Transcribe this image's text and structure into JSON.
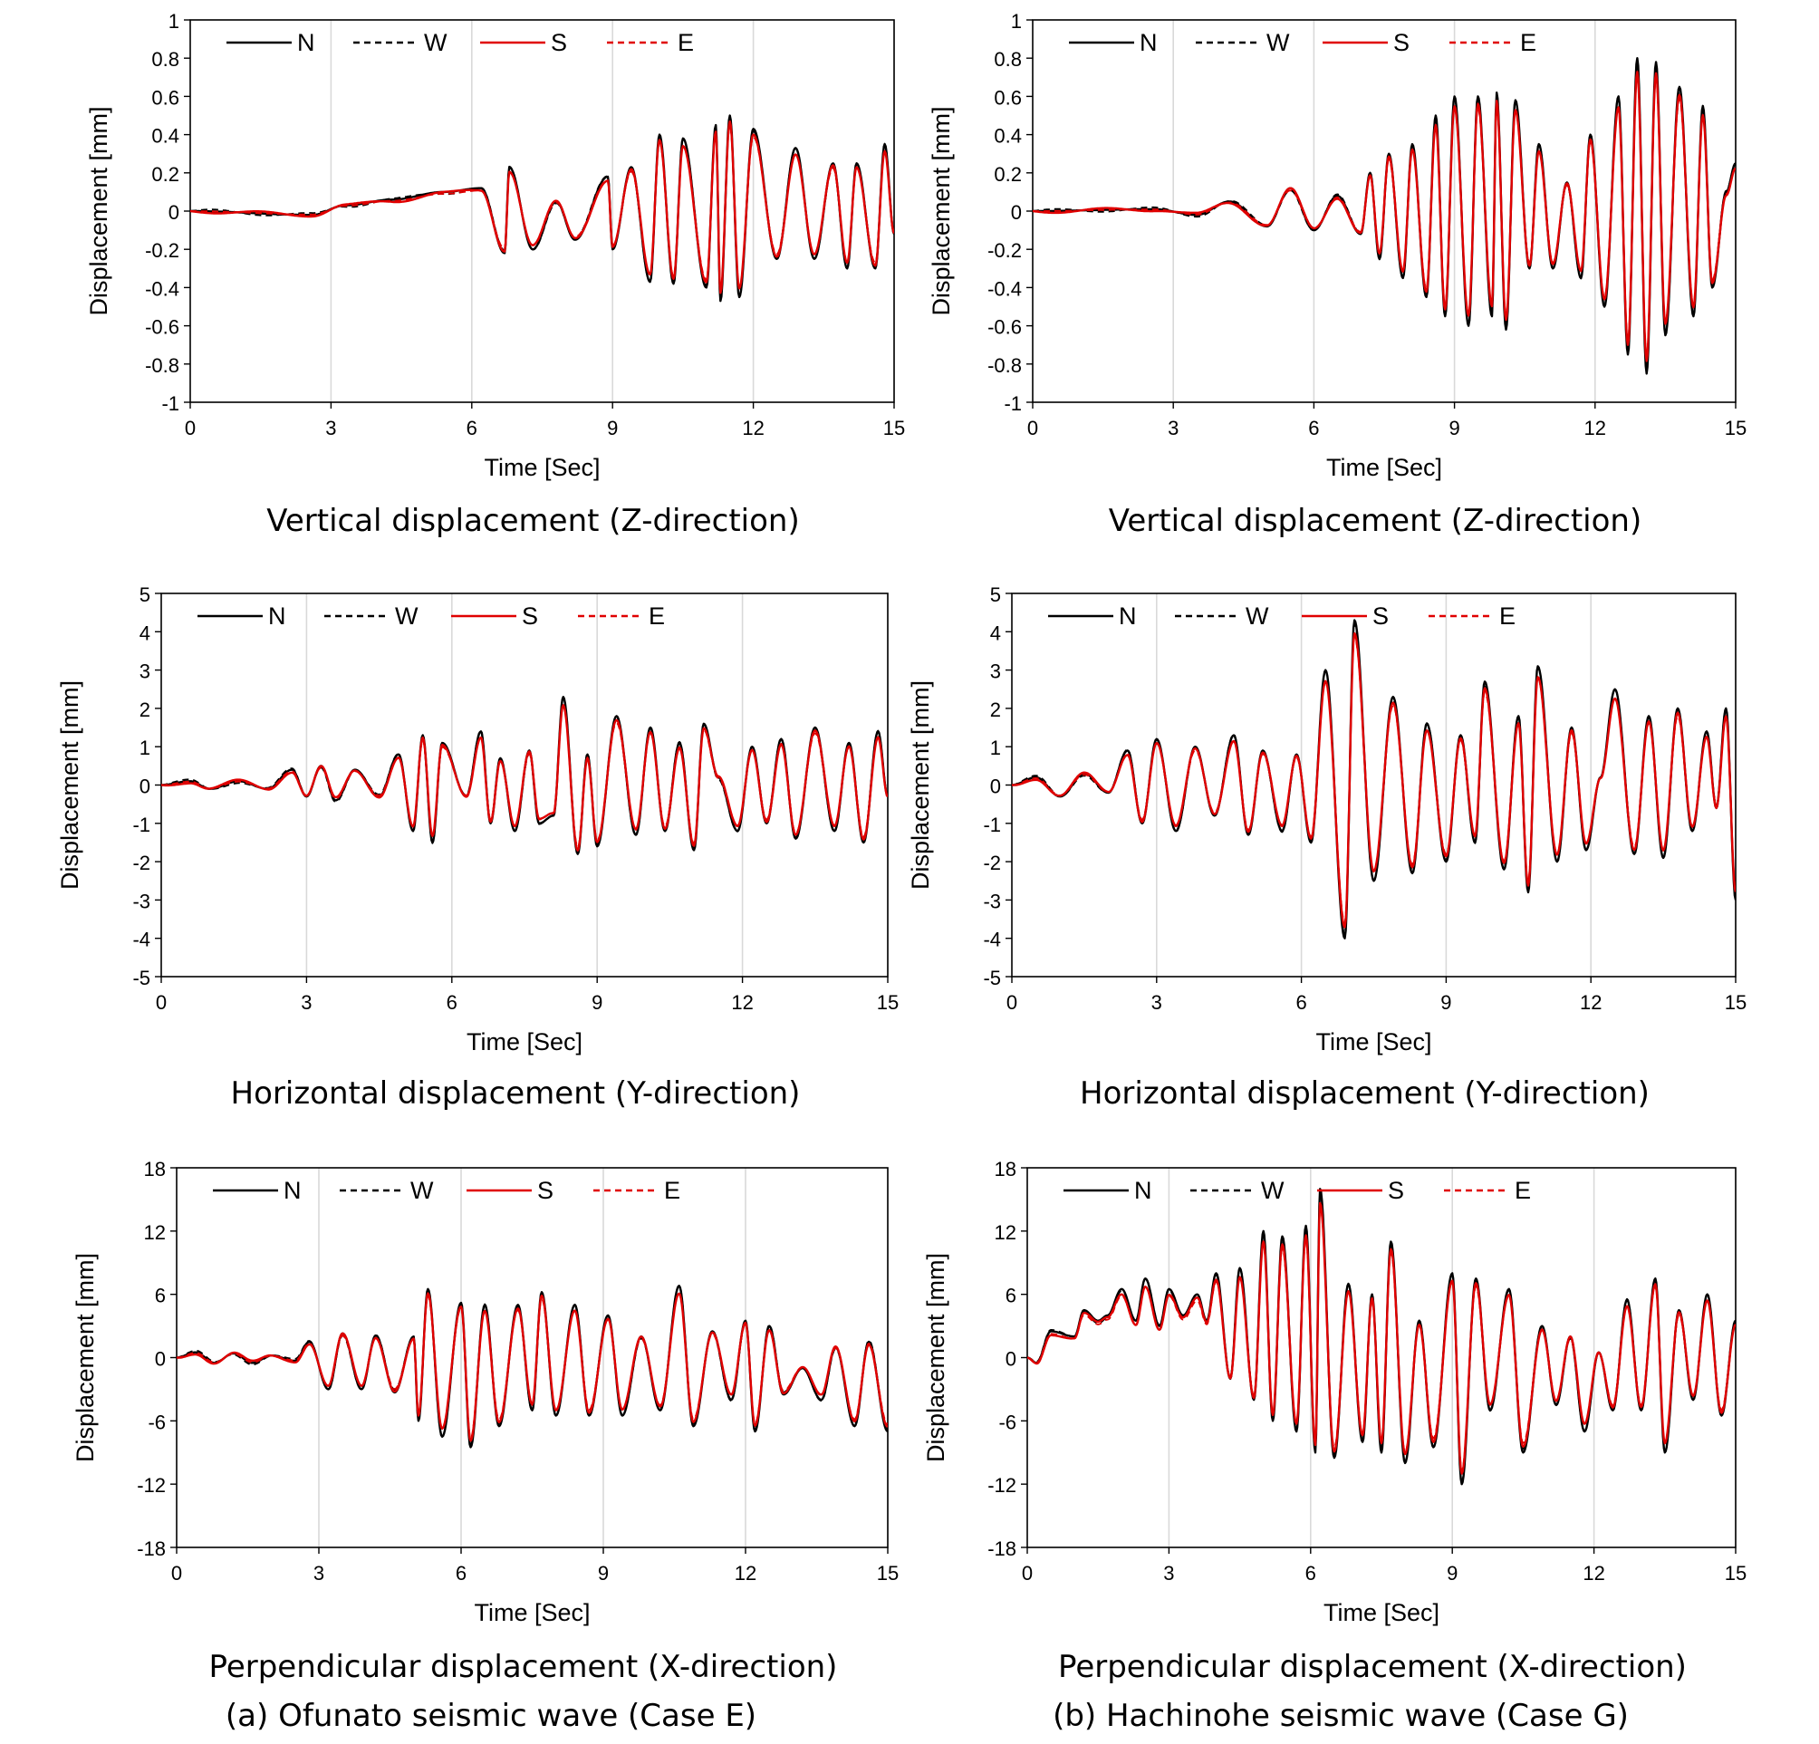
{
  "figure_captions": {
    "left": "(a) Ofunato seismic wave (Case E)",
    "right": "(b) Hachinohe seismic wave (Case G)"
  },
  "colors": {
    "N": "#000000",
    "W": "#000000",
    "S": "#e00000",
    "E": "#e00000",
    "grid": "#d9d9d9"
  },
  "chart_data": [
    {
      "type": "line",
      "caption": "Vertical displacement (Z-direction)",
      "xlabel": "Time [Sec]",
      "ylabel": "Displacement [mm]",
      "xlim": [
        0,
        15
      ],
      "ylim": [
        -1,
        1
      ],
      "xticks": [
        "0",
        "3",
        "6",
        "9",
        "12",
        "15"
      ],
      "yticks": [
        "1",
        "0.8",
        "0.6",
        "0.4",
        "0.2",
        "0",
        "-0.2",
        "-0.4",
        "-0.6",
        "-0.8",
        "-1"
      ],
      "grid": "vertical",
      "legend": "top",
      "series": [
        {
          "name": "N",
          "style": "solid-black"
        },
        {
          "name": "W",
          "style": "dashed-black"
        },
        {
          "name": "S",
          "style": "solid-red"
        },
        {
          "name": "E",
          "style": "dashed-red"
        }
      ],
      "extrema": [
        [
          0,
          0
        ],
        [
          2.6,
          -0.02
        ],
        [
          3.3,
          0.03
        ],
        [
          4.3,
          0.06
        ],
        [
          5.4,
          0.1
        ],
        [
          6.2,
          0.12
        ],
        [
          6.7,
          -0.22
        ],
        [
          6.8,
          0.23
        ],
        [
          7.3,
          -0.2
        ],
        [
          7.8,
          0.05
        ],
        [
          8.2,
          -0.15
        ],
        [
          8.9,
          0.18
        ],
        [
          9.0,
          -0.2
        ],
        [
          9.4,
          0.23
        ],
        [
          9.8,
          -0.37
        ],
        [
          10.0,
          0.4
        ],
        [
          10.3,
          -0.38
        ],
        [
          10.5,
          0.38
        ],
        [
          11.0,
          -0.4
        ],
        [
          11.2,
          0.45
        ],
        [
          11.3,
          -0.47
        ],
        [
          11.5,
          0.5
        ],
        [
          11.7,
          -0.45
        ],
        [
          12.0,
          0.43
        ],
        [
          12.5,
          -0.25
        ],
        [
          12.9,
          0.33
        ],
        [
          13.3,
          -0.25
        ],
        [
          13.7,
          0.25
        ],
        [
          14.0,
          -0.3
        ],
        [
          14.2,
          0.25
        ],
        [
          14.6,
          -0.3
        ],
        [
          14.8,
          0.35
        ],
        [
          15.0,
          -0.12
        ]
      ]
    },
    {
      "type": "line",
      "caption": "Horizontal displacement (Y-direction)",
      "xlabel": "Time [Sec]",
      "ylabel": "Displacement [mm]",
      "xlim": [
        0,
        15
      ],
      "ylim": [
        -5,
        5
      ],
      "xticks": [
        "0",
        "3",
        "6",
        "9",
        "12",
        "15"
      ],
      "yticks": [
        "5",
        "4",
        "3",
        "2",
        "1",
        "0",
        "-1",
        "-2",
        "-3",
        "-4",
        "-5"
      ],
      "grid": "vertical",
      "legend": "top",
      "series": [
        {
          "name": "N",
          "style": "solid-black"
        },
        {
          "name": "W",
          "style": "dashed-black"
        },
        {
          "name": "S",
          "style": "solid-red"
        },
        {
          "name": "E",
          "style": "dashed-red"
        }
      ],
      "extrema": [
        [
          0,
          0
        ],
        [
          0.6,
          0.1
        ],
        [
          1.0,
          -0.1
        ],
        [
          1.6,
          0.1
        ],
        [
          2.2,
          -0.1
        ],
        [
          2.7,
          0.4
        ],
        [
          3.0,
          -0.3
        ],
        [
          3.3,
          0.5
        ],
        [
          3.6,
          -0.4
        ],
        [
          4.0,
          0.4
        ],
        [
          4.5,
          -0.3
        ],
        [
          4.9,
          0.8
        ],
        [
          5.2,
          -1.2
        ],
        [
          5.4,
          1.3
        ],
        [
          5.6,
          -1.5
        ],
        [
          5.8,
          1.1
        ],
        [
          6.3,
          -0.3
        ],
        [
          6.6,
          1.4
        ],
        [
          6.8,
          -1.0
        ],
        [
          7.0,
          0.7
        ],
        [
          7.3,
          -1.2
        ],
        [
          7.6,
          0.9
        ],
        [
          7.8,
          -1.0
        ],
        [
          8.1,
          -0.8
        ],
        [
          8.3,
          2.3
        ],
        [
          8.6,
          -1.8
        ],
        [
          8.8,
          0.8
        ],
        [
          9.0,
          -1.6
        ],
        [
          9.4,
          1.8
        ],
        [
          9.8,
          -1.3
        ],
        [
          10.1,
          1.5
        ],
        [
          10.4,
          -1.2
        ],
        [
          10.7,
          1.1
        ],
        [
          11.0,
          -1.7
        ],
        [
          11.2,
          1.6
        ],
        [
          11.5,
          0.2
        ],
        [
          11.9,
          -1.2
        ],
        [
          12.2,
          1.0
        ],
        [
          12.5,
          -1.0
        ],
        [
          12.8,
          1.2
        ],
        [
          13.1,
          -1.4
        ],
        [
          13.5,
          1.5
        ],
        [
          13.9,
          -1.2
        ],
        [
          14.2,
          1.1
        ],
        [
          14.5,
          -1.5
        ],
        [
          14.8,
          1.4
        ],
        [
          15.0,
          -0.3
        ]
      ]
    },
    {
      "type": "line",
      "caption": "Perpendicular displacement (X-direction)",
      "xlabel": "Time [Sec]",
      "ylabel": "Displacement [mm]",
      "xlim": [
        0,
        15
      ],
      "ylim": [
        -18,
        18
      ],
      "xticks": [
        "0",
        "3",
        "6",
        "9",
        "12",
        "15"
      ],
      "yticks": [
        "18",
        "12",
        "6",
        "0",
        "-6",
        "-12",
        "-18"
      ],
      "grid": "vertical",
      "legend": "top",
      "series": [
        {
          "name": "N",
          "style": "solid-black"
        },
        {
          "name": "W",
          "style": "dashed-black"
        },
        {
          "name": "S",
          "style": "solid-red"
        },
        {
          "name": "E",
          "style": "dashed-red"
        }
      ],
      "extrema": [
        [
          0,
          0
        ],
        [
          0.4,
          0.5
        ],
        [
          0.8,
          -0.5
        ],
        [
          1.2,
          0.4
        ],
        [
          1.6,
          -0.5
        ],
        [
          2.0,
          0.2
        ],
        [
          2.5,
          -0.3
        ],
        [
          2.8,
          1.5
        ],
        [
          3.2,
          -3.0
        ],
        [
          3.5,
          2.3
        ],
        [
          3.9,
          -3.0
        ],
        [
          4.2,
          2.1
        ],
        [
          4.6,
          -3.3
        ],
        [
          5.0,
          2.0
        ],
        [
          5.1,
          -6.0
        ],
        [
          5.3,
          6.5
        ],
        [
          5.6,
          -7.5
        ],
        [
          6.0,
          5.2
        ],
        [
          6.2,
          -8.5
        ],
        [
          6.5,
          5.0
        ],
        [
          6.8,
          -6.5
        ],
        [
          7.2,
          5.0
        ],
        [
          7.5,
          -5.0
        ],
        [
          7.7,
          6.2
        ],
        [
          8.0,
          -5.5
        ],
        [
          8.4,
          5.0
        ],
        [
          8.7,
          -5.5
        ],
        [
          9.1,
          4.0
        ],
        [
          9.4,
          -5.5
        ],
        [
          9.8,
          2.0
        ],
        [
          10.2,
          -5.0
        ],
        [
          10.6,
          6.8
        ],
        [
          10.9,
          -6.5
        ],
        [
          11.3,
          2.5
        ],
        [
          11.7,
          -4.0
        ],
        [
          12.0,
          3.5
        ],
        [
          12.2,
          -7.0
        ],
        [
          12.5,
          3.0
        ],
        [
          12.8,
          -3.5
        ],
        [
          13.2,
          -1.0
        ],
        [
          13.6,
          -4.0
        ],
        [
          13.9,
          1.0
        ],
        [
          14.3,
          -6.5
        ],
        [
          14.6,
          1.5
        ],
        [
          15.0,
          -7.0
        ]
      ]
    },
    {
      "type": "line",
      "caption": "Vertical displacement (Z-direction)",
      "xlabel": "Time [Sec]",
      "ylabel": "Displacement [mm]",
      "xlim": [
        0,
        15
      ],
      "ylim": [
        -1,
        1
      ],
      "xticks": [
        "0",
        "3",
        "6",
        "9",
        "12",
        "15"
      ],
      "yticks": [
        "1",
        "0.8",
        "0.6",
        "0.4",
        "0.2",
        "0",
        "-0.2",
        "-0.4",
        "-0.6",
        "-0.8",
        "-1"
      ],
      "grid": "vertical",
      "legend": "top",
      "series": [
        {
          "name": "N",
          "style": "solid-black"
        },
        {
          "name": "W",
          "style": "dashed-black"
        },
        {
          "name": "S",
          "style": "solid-red"
        },
        {
          "name": "E",
          "style": "dashed-red"
        }
      ],
      "extrema": [
        [
          0,
          0
        ],
        [
          2.6,
          0.01
        ],
        [
          3.5,
          -0.02
        ],
        [
          4.2,
          0.05
        ],
        [
          5.0,
          -0.08
        ],
        [
          5.5,
          0.12
        ],
        [
          6.0,
          -0.1
        ],
        [
          6.5,
          0.08
        ],
        [
          7.0,
          -0.12
        ],
        [
          7.2,
          0.2
        ],
        [
          7.4,
          -0.25
        ],
        [
          7.6,
          0.3
        ],
        [
          7.9,
          -0.35
        ],
        [
          8.1,
          0.35
        ],
        [
          8.4,
          -0.45
        ],
        [
          8.6,
          0.5
        ],
        [
          8.8,
          -0.55
        ],
        [
          9.0,
          0.6
        ],
        [
          9.3,
          -0.6
        ],
        [
          9.5,
          0.6
        ],
        [
          9.8,
          -0.55
        ],
        [
          9.9,
          0.62
        ],
        [
          10.1,
          -0.62
        ],
        [
          10.3,
          0.58
        ],
        [
          10.6,
          -0.3
        ],
        [
          10.8,
          0.35
        ],
        [
          11.1,
          -0.3
        ],
        [
          11.4,
          0.15
        ],
        [
          11.7,
          -0.35
        ],
        [
          11.9,
          0.4
        ],
        [
          12.2,
          -0.5
        ],
        [
          12.5,
          0.6
        ],
        [
          12.7,
          -0.75
        ],
        [
          12.9,
          0.8
        ],
        [
          13.1,
          -0.85
        ],
        [
          13.3,
          0.78
        ],
        [
          13.5,
          -0.65
        ],
        [
          13.8,
          0.65
        ],
        [
          14.1,
          -0.55
        ],
        [
          14.3,
          0.55
        ],
        [
          14.5,
          -0.4
        ],
        [
          14.8,
          0.1
        ],
        [
          15.0,
          0.25
        ]
      ]
    },
    {
      "type": "line",
      "caption": "Horizontal displacement (Y-direction)",
      "xlabel": "Time [Sec]",
      "ylabel": "Displacement [mm]",
      "xlim": [
        0,
        15
      ],
      "ylim": [
        -5,
        5
      ],
      "xticks": [
        "0",
        "3",
        "6",
        "9",
        "12",
        "15"
      ],
      "yticks": [
        "5",
        "4",
        "3",
        "2",
        "1",
        "0",
        "-1",
        "-2",
        "-3",
        "-4",
        "-5"
      ],
      "grid": "vertical",
      "legend": "top",
      "series": [
        {
          "name": "N",
          "style": "solid-black"
        },
        {
          "name": "W",
          "style": "dashed-black"
        },
        {
          "name": "S",
          "style": "solid-red"
        },
        {
          "name": "E",
          "style": "dashed-red"
        }
      ],
      "extrema": [
        [
          0,
          0
        ],
        [
          0.5,
          0.2
        ],
        [
          1.0,
          -0.3
        ],
        [
          1.5,
          0.3
        ],
        [
          2.0,
          -0.2
        ],
        [
          2.4,
          0.9
        ],
        [
          2.7,
          -1.0
        ],
        [
          3.0,
          1.2
        ],
        [
          3.4,
          -1.2
        ],
        [
          3.8,
          1.0
        ],
        [
          4.2,
          -0.8
        ],
        [
          4.6,
          1.3
        ],
        [
          4.9,
          -1.3
        ],
        [
          5.2,
          0.9
        ],
        [
          5.6,
          -1.2
        ],
        [
          5.9,
          0.8
        ],
        [
          6.2,
          -1.5
        ],
        [
          6.5,
          3.0
        ],
        [
          6.9,
          -4.0
        ],
        [
          7.1,
          4.3
        ],
        [
          7.5,
          -2.5
        ],
        [
          7.9,
          2.3
        ],
        [
          8.3,
          -2.3
        ],
        [
          8.6,
          1.6
        ],
        [
          9.0,
          -2.0
        ],
        [
          9.3,
          1.3
        ],
        [
          9.6,
          -1.5
        ],
        [
          9.8,
          2.7
        ],
        [
          10.2,
          -2.2
        ],
        [
          10.5,
          1.8
        ],
        [
          10.7,
          -2.8
        ],
        [
          10.9,
          3.1
        ],
        [
          11.3,
          -2.0
        ],
        [
          11.6,
          1.5
        ],
        [
          11.9,
          -1.7
        ],
        [
          12.2,
          0.2
        ],
        [
          12.5,
          2.5
        ],
        [
          12.9,
          -1.8
        ],
        [
          13.2,
          1.8
        ],
        [
          13.5,
          -1.9
        ],
        [
          13.8,
          2.0
        ],
        [
          14.1,
          -1.2
        ],
        [
          14.4,
          1.4
        ],
        [
          14.6,
          -0.6
        ],
        [
          14.8,
          2.0
        ],
        [
          15.0,
          -3.0
        ]
      ]
    },
    {
      "type": "line",
      "caption": "Perpendicular displacement (X-direction)",
      "xlabel": "Time [Sec]",
      "ylabel": "Displacement [mm]",
      "xlim": [
        0,
        15
      ],
      "ylim": [
        -18,
        18
      ],
      "xticks": [
        "0",
        "3",
        "6",
        "9",
        "12",
        "15"
      ],
      "yticks": [
        "18",
        "12",
        "6",
        "0",
        "-6",
        "-12",
        "-18"
      ],
      "grid": "vertical",
      "legend": "top",
      "series": [
        {
          "name": "N",
          "style": "solid-black"
        },
        {
          "name": "W",
          "style": "dashed-black"
        },
        {
          "name": "S",
          "style": "solid-red"
        },
        {
          "name": "E",
          "style": "dashed-red"
        }
      ],
      "extrema": [
        [
          0,
          0
        ],
        [
          0.2,
          -0.5
        ],
        [
          0.5,
          2.5
        ],
        [
          1.0,
          2.0
        ],
        [
          1.2,
          4.5
        ],
        [
          1.5,
          3.5
        ],
        [
          1.7,
          4.0
        ],
        [
          2.0,
          6.5
        ],
        [
          2.3,
          3.5
        ],
        [
          2.5,
          7.5
        ],
        [
          2.8,
          3.0
        ],
        [
          3.0,
          6.5
        ],
        [
          3.3,
          4.0
        ],
        [
          3.6,
          6.0
        ],
        [
          3.8,
          3.5
        ],
        [
          4.0,
          8.0
        ],
        [
          4.3,
          -2.0
        ],
        [
          4.5,
          8.5
        ],
        [
          4.8,
          -4.0
        ],
        [
          5.0,
          12.0
        ],
        [
          5.2,
          -6.0
        ],
        [
          5.4,
          11.5
        ],
        [
          5.7,
          -7.0
        ],
        [
          5.9,
          12.5
        ],
        [
          6.1,
          -9.0
        ],
        [
          6.2,
          16.0
        ],
        [
          6.5,
          -9.5
        ],
        [
          6.8,
          7.0
        ],
        [
          7.1,
          -8.0
        ],
        [
          7.3,
          6.0
        ],
        [
          7.5,
          -9.0
        ],
        [
          7.7,
          11.0
        ],
        [
          8.0,
          -10.0
        ],
        [
          8.3,
          3.5
        ],
        [
          8.6,
          -8.5
        ],
        [
          9.0,
          8.0
        ],
        [
          9.2,
          -12.0
        ],
        [
          9.5,
          7.5
        ],
        [
          9.8,
          -5.0
        ],
        [
          10.2,
          6.5
        ],
        [
          10.5,
          -9.0
        ],
        [
          10.9,
          3.0
        ],
        [
          11.2,
          -4.5
        ],
        [
          11.5,
          2.0
        ],
        [
          11.8,
          -7.0
        ],
        [
          12.1,
          0.5
        ],
        [
          12.4,
          -5.0
        ],
        [
          12.7,
          5.5
        ],
        [
          13.0,
          -5.0
        ],
        [
          13.3,
          7.5
        ],
        [
          13.5,
          -9.0
        ],
        [
          13.8,
          4.5
        ],
        [
          14.1,
          -4.0
        ],
        [
          14.4,
          6.0
        ],
        [
          14.7,
          -5.5
        ],
        [
          15.0,
          3.5
        ]
      ]
    }
  ]
}
